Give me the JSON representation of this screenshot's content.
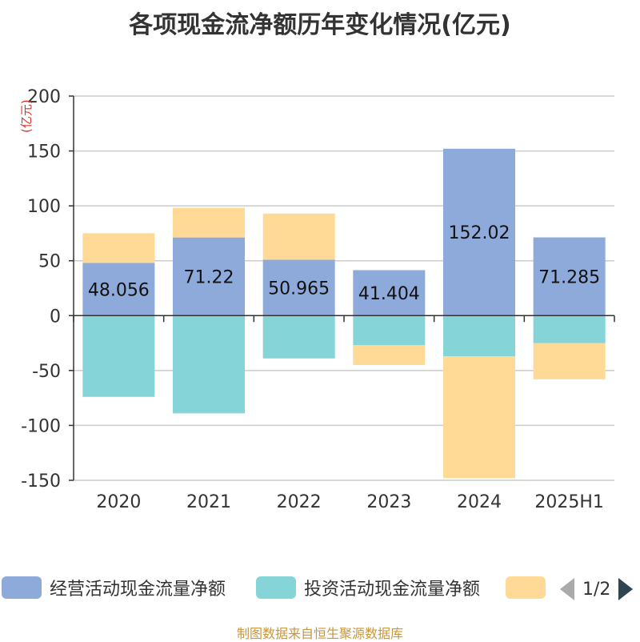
{
  "title": "各项现金流净额历年变化情况(亿元)",
  "source": "制图数据来自恒生聚源数据库",
  "legend": {
    "pager": "1/2"
  },
  "chart_data": {
    "type": "bar",
    "stacked": true,
    "unit_label": "(亿元)",
    "categories": [
      "2020",
      "2021",
      "2022",
      "2023",
      "2024",
      "2025H1"
    ],
    "ylim": [
      -150,
      200
    ],
    "yticks": [
      200,
      150,
      100,
      50,
      0,
      -50,
      -100,
      -150
    ],
    "ytick_labels": [
      "200",
      "150",
      "100",
      "50",
      "0",
      "-50",
      "-100",
      "-150"
    ],
    "grid": true,
    "series": [
      {
        "name": "经营活动现金流量净额",
        "color": "#8eaadb",
        "values": [
          48.056,
          71.22,
          50.965,
          41.404,
          152.02,
          71.285
        ],
        "labels": [
          "48.056",
          "71.22",
          "50.965",
          "41.404",
          "152.02",
          "71.285"
        ]
      },
      {
        "name": "投资活动现金流量净额",
        "color": "#85d4d8",
        "values": [
          -74,
          -89,
          -39,
          -27,
          -37,
          -25
        ]
      },
      {
        "name": "",
        "color": "#ffd996",
        "values": [
          27,
          27,
          42,
          -18,
          -111,
          -33
        ]
      }
    ]
  }
}
